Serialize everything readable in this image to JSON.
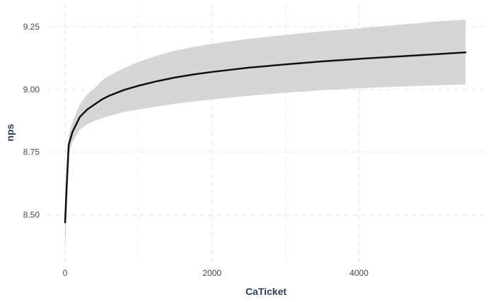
{
  "chart_data": {
    "type": "line",
    "title": "",
    "xlabel": "CaTicket",
    "ylabel": "nps",
    "xlim": [
      -250,
      5700
    ],
    "ylim": [
      8.31,
      9.34
    ],
    "x_ticks": [
      0,
      2000,
      4000
    ],
    "x_tick_labels": [
      "0",
      "2000",
      "4000"
    ],
    "y_ticks": [
      8.5,
      8.75,
      9.0,
      9.25
    ],
    "y_tick_labels": [
      "8.50",
      "8.75",
      "9.00",
      "9.25"
    ],
    "grid": true,
    "legend": "none",
    "colors": {
      "line": "#111111",
      "band": "#d6d6d6",
      "grid": "#e4e4e4"
    },
    "series": [
      {
        "x": [
          0,
          25,
          50,
          100,
          200,
          300,
          400,
          500,
          600,
          800,
          1000,
          1250,
          1500,
          1750,
          2000,
          2500,
          3000,
          3500,
          4000,
          4500,
          5000,
          5450
        ],
        "y": [
          8.47,
          8.63,
          8.78,
          8.83,
          8.89,
          8.92,
          8.94,
          8.96,
          8.975,
          8.998,
          9.015,
          9.033,
          9.048,
          9.06,
          9.07,
          9.087,
          9.1,
          9.112,
          9.122,
          9.131,
          9.14,
          9.148
        ],
        "lower": [
          8.35,
          8.52,
          8.74,
          8.79,
          8.84,
          8.86,
          8.875,
          8.885,
          8.895,
          8.91,
          8.92,
          8.932,
          8.943,
          8.952,
          8.96,
          8.975,
          8.987,
          8.997,
          9.005,
          9.011,
          9.016,
          9.02
        ],
        "upper": [
          8.59,
          8.74,
          8.82,
          8.87,
          8.94,
          8.98,
          9.005,
          9.035,
          9.055,
          9.085,
          9.11,
          9.135,
          9.155,
          9.17,
          9.182,
          9.202,
          9.218,
          9.232,
          9.244,
          9.257,
          9.27,
          9.279
        ]
      }
    ]
  }
}
